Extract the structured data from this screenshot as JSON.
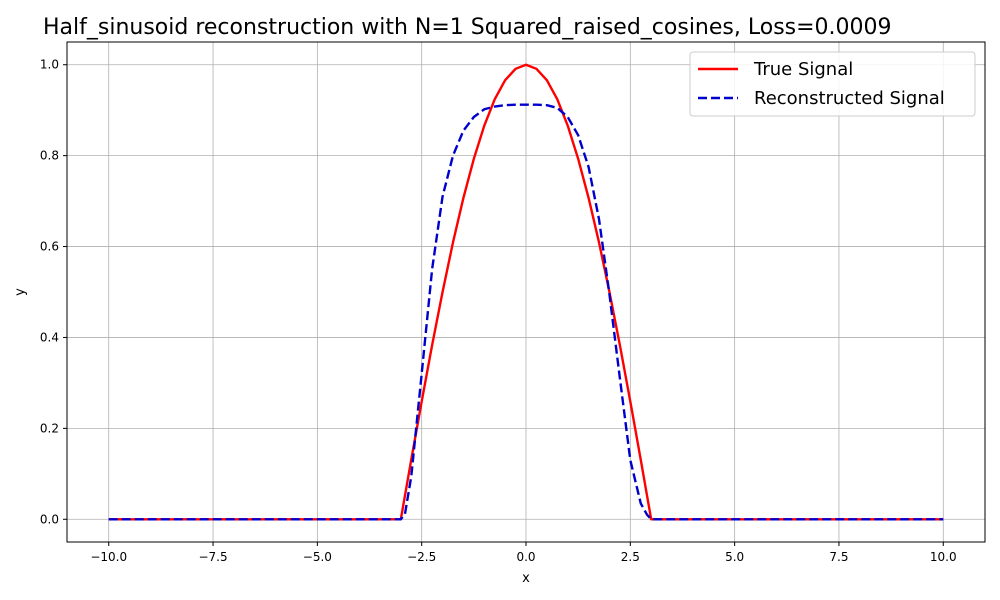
{
  "chart_data": {
    "type": "line",
    "title": "Half_sinusoid reconstruction with N=1 Squared_raised_cosines, Loss=0.0009",
    "xlabel": "x",
    "ylabel": "y",
    "xlim": [
      -11.0,
      11.0
    ],
    "ylim": [
      -0.05,
      1.05
    ],
    "xticks": [
      -10.0,
      -7.5,
      -5.0,
      -2.5,
      0.0,
      2.5,
      5.0,
      7.5,
      10.0
    ],
    "xtick_labels": [
      "−10.0",
      "−7.5",
      "−5.0",
      "−2.5",
      "0.0",
      "2.5",
      "5.0",
      "7.5",
      "10.0"
    ],
    "yticks": [
      0.0,
      0.2,
      0.4,
      0.6,
      0.8,
      1.0
    ],
    "ytick_labels": [
      "0.0",
      "0.2",
      "0.4",
      "0.6",
      "0.8",
      "1.0"
    ],
    "grid": true,
    "legend_position": "top-right",
    "series": [
      {
        "name": "True Signal",
        "color": "#ff0000",
        "style": "solid",
        "x": [
          -10,
          -3,
          -2.75,
          -2.5,
          -2.25,
          -2,
          -1.75,
          -1.5,
          -1.25,
          -1,
          -0.75,
          -0.5,
          -0.25,
          0,
          0.25,
          0.5,
          0.75,
          1,
          1.25,
          1.5,
          1.75,
          2,
          2.25,
          2.5,
          2.75,
          3,
          10
        ],
        "y": [
          0,
          0,
          0.131,
          0.259,
          0.383,
          0.5,
          0.609,
          0.707,
          0.793,
          0.866,
          0.924,
          0.966,
          0.991,
          1.0,
          0.991,
          0.966,
          0.924,
          0.866,
          0.793,
          0.707,
          0.609,
          0.5,
          0.383,
          0.259,
          0.131,
          0,
          0
        ]
      },
      {
        "name": "Reconstructed Signal",
        "color": "#0000cc",
        "style": "dashed",
        "x": [
          -10,
          -3,
          -2.9,
          -2.75,
          -2.5,
          -2.25,
          -2,
          -1.75,
          -1.5,
          -1.25,
          -1,
          -0.75,
          -0.5,
          -0.25,
          0,
          0.25,
          0.5,
          0.75,
          1,
          1.25,
          1.5,
          1.75,
          2,
          2.25,
          2.5,
          2.75,
          2.9,
          3,
          10
        ],
        "y": [
          0,
          0,
          0.012,
          0.094,
          0.32,
          0.55,
          0.71,
          0.8,
          0.855,
          0.885,
          0.902,
          0.908,
          0.911,
          0.912,
          0.912,
          0.912,
          0.911,
          0.905,
          0.885,
          0.845,
          0.775,
          0.66,
          0.495,
          0.31,
          0.13,
          0.035,
          0.01,
          0,
          0
        ]
      }
    ]
  }
}
